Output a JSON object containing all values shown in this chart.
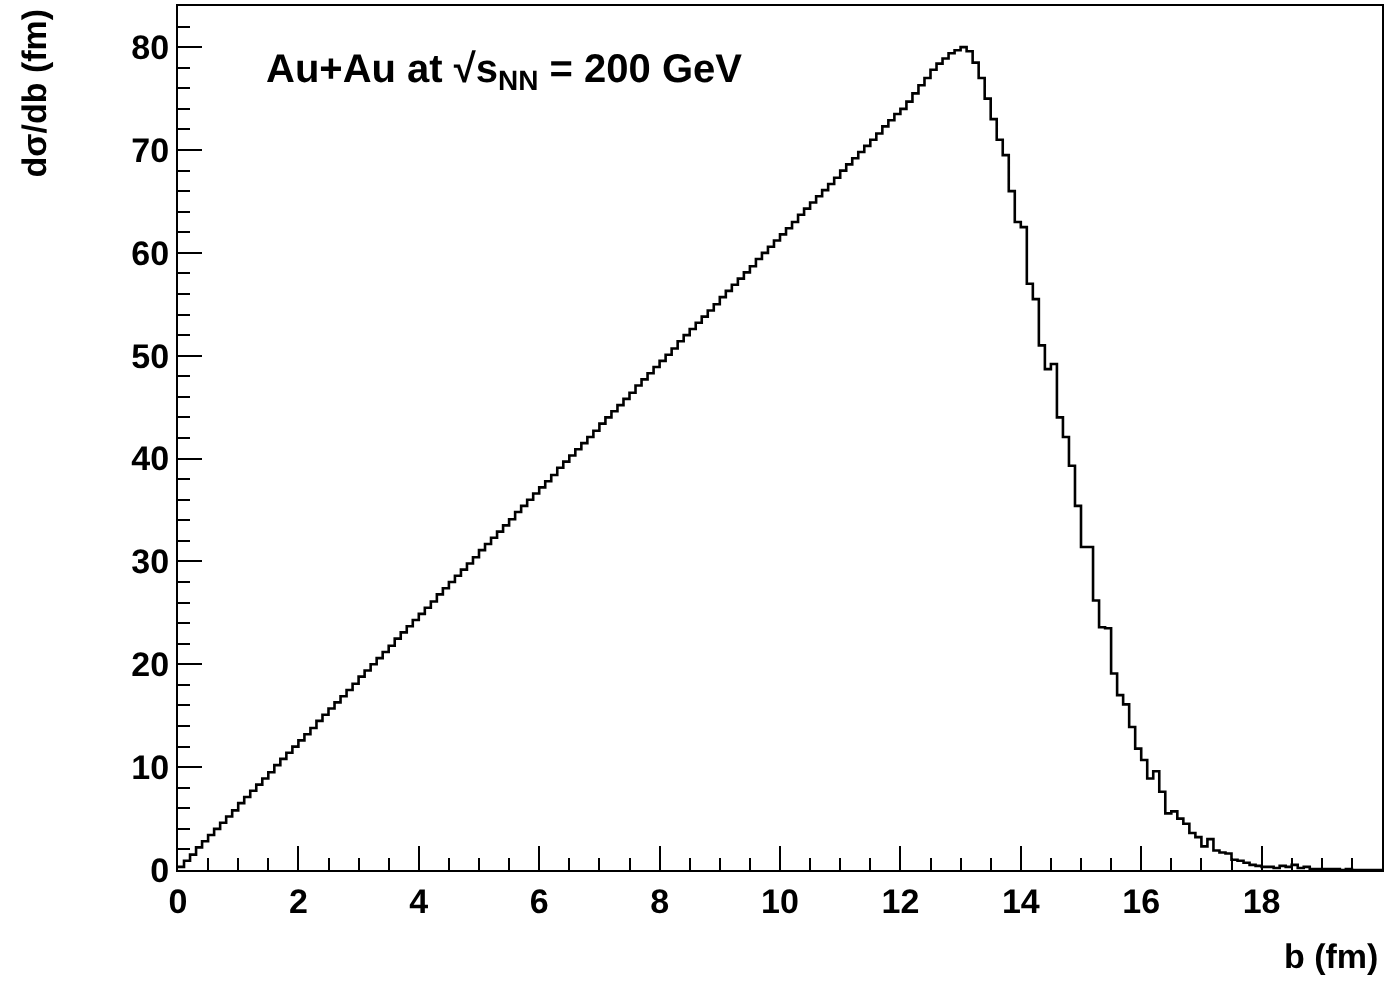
{
  "chart_data": {
    "type": "histogram",
    "xlabel": "b (fm)",
    "ylabel": "dσ/db (fm)",
    "annotations": [
      "Au+Au at √s$_{NN}$ = 200 GeV"
    ],
    "bins": [
      0,
      0.1,
      0.2,
      0.3,
      0.4,
      0.5,
      0.6,
      0.7,
      0.8,
      0.9,
      1,
      1.1,
      1.2,
      1.3,
      1.4,
      1.5,
      1.6,
      1.7,
      1.8,
      1.9,
      2,
      2.1,
      2.2,
      2.3,
      2.4,
      2.5,
      2.6,
      2.7,
      2.8,
      2.9,
      3,
      3.1,
      3.2,
      3.3,
      3.4,
      3.5,
      3.6,
      3.7,
      3.8,
      3.9,
      4,
      4.1,
      4.2,
      4.3,
      4.4,
      4.5,
      4.6,
      4.7,
      4.8,
      4.9,
      5,
      5.1,
      5.2,
      5.3,
      5.4,
      5.5,
      5.6,
      5.7,
      5.8,
      5.9,
      6,
      6.1,
      6.2,
      6.3,
      6.4,
      6.5,
      6.6,
      6.7,
      6.8,
      6.9,
      7,
      7.1,
      7.2,
      7.3,
      7.4,
      7.5,
      7.6,
      7.7,
      7.8,
      7.9,
      8,
      8.1,
      8.2,
      8.3,
      8.4,
      8.5,
      8.6,
      8.7,
      8.8,
      8.9,
      9,
      9.1,
      9.2,
      9.3,
      9.4,
      9.5,
      9.6,
      9.7,
      9.8,
      9.9,
      10,
      10.1,
      10.2,
      10.3,
      10.4,
      10.5,
      10.6,
      10.7,
      10.8,
      10.9,
      11,
      11.1,
      11.2,
      11.3,
      11.4,
      11.5,
      11.6,
      11.7,
      11.8,
      11.9,
      12,
      12.1,
      12.2,
      12.3,
      12.4,
      12.5,
      12.6,
      12.7,
      12.8,
      12.9,
      13,
      13.1,
      13.2,
      13.3,
      13.4,
      13.5,
      13.6,
      13.7,
      13.8,
      13.9,
      14,
      14.1,
      14.2,
      14.3,
      14.4,
      14.5,
      14.6,
      14.7,
      14.8,
      14.9,
      15,
      15.1,
      15.2,
      15.3,
      15.4,
      15.5,
      15.6,
      15.7,
      15.8,
      15.9,
      16,
      16.1,
      16.2,
      16.3,
      16.4,
      16.5,
      16.6,
      16.7,
      16.8,
      16.9,
      17,
      17.1,
      17.2,
      17.3,
      17.4,
      17.5,
      17.6,
      17.7,
      17.8,
      17.9,
      18,
      18.1,
      18.2,
      18.3,
      18.4,
      18.5,
      18.6,
      18.7,
      18.8,
      18.9,
      19,
      19.1,
      19.2,
      19.3,
      19.4,
      19.5,
      19.6,
      19.7,
      19.8,
      19.9,
      20
    ],
    "values": [
      0.3,
      0.9,
      1.5,
      2.2,
      2.8,
      3.4,
      4.0,
      4.6,
      5.2,
      5.8,
      6.5,
      7.1,
      7.7,
      8.3,
      8.9,
      9.5,
      10.2,
      10.8,
      11.4,
      12.0,
      12.6,
      13.2,
      13.8,
      14.5,
      15.1,
      15.7,
      16.3,
      16.9,
      17.5,
      18.1,
      18.8,
      19.4,
      20.0,
      20.6,
      21.2,
      21.8,
      22.5,
      23.1,
      23.7,
      24.3,
      24.9,
      25.5,
      26.1,
      26.8,
      27.4,
      28.0,
      28.6,
      29.2,
      29.8,
      30.4,
      31.1,
      31.7,
      32.3,
      32.9,
      33.5,
      34.1,
      34.8,
      35.4,
      36.0,
      36.6,
      37.2,
      37.8,
      38.4,
      39.1,
      39.7,
      40.3,
      40.9,
      41.5,
      42.1,
      42.7,
      43.4,
      44.0,
      44.6,
      45.2,
      45.8,
      46.4,
      47.1,
      47.7,
      48.3,
      48.9,
      49.5,
      50.1,
      50.7,
      51.4,
      52.0,
      52.6,
      53.2,
      53.8,
      54.4,
      55.0,
      55.7,
      56.3,
      56.9,
      57.5,
      58.1,
      58.7,
      59.4,
      60.0,
      60.6,
      61.2,
      61.8,
      62.4,
      63.0,
      63.7,
      64.3,
      64.9,
      65.5,
      66.1,
      66.7,
      67.3,
      68.0,
      68.6,
      69.2,
      69.8,
      70.4,
      71.0,
      71.6,
      72.3,
      72.9,
      73.5,
      74.0,
      74.7,
      75.5,
      76.3,
      77.0,
      77.8,
      78.4,
      78.9,
      79.4,
      79.7,
      80.0,
      79.6,
      78.5,
      77.0,
      75.0,
      73.0,
      71.0,
      69.5,
      66.0,
      63.0,
      62.5,
      57.0,
      55.5,
      51.0,
      48.7,
      49.2,
      44.0,
      42.1,
      39.3,
      35.4,
      31.4,
      31.4,
      26.2,
      23.6,
      23.5,
      19.1,
      17.0,
      16.1,
      13.9,
      11.8,
      10.7,
      8.9,
      9.6,
      7.6,
      5.5,
      5.7,
      5.0,
      4.5,
      3.6,
      3.2,
      2.3,
      3.0,
      1.9,
      1.7,
      1.6,
      1.0,
      0.9,
      0.7,
      0.5,
      0.4,
      0.3,
      0.3,
      0.2,
      0.4,
      0.3,
      0.5,
      0.2,
      0.3,
      0.1,
      0.1,
      0.1,
      0.1,
      0.1,
      0.0,
      0.1,
      0.0,
      0.0,
      0.0,
      0.0,
      0.0
    ],
    "color": "#000000",
    "xlim": [
      0,
      20
    ],
    "xticks": [
      0,
      2,
      4,
      6,
      8,
      10,
      12,
      14,
      16,
      18
    ],
    "ylim": [
      0,
      84
    ],
    "yticks": [
      0,
      10,
      20,
      30,
      40,
      50,
      60,
      70,
      80
    ]
  }
}
